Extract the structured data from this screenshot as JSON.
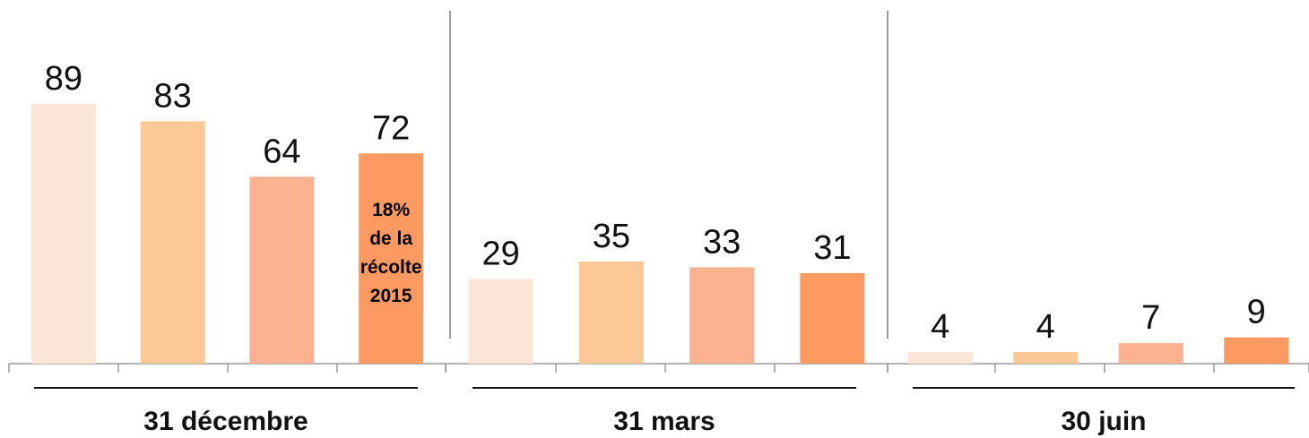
{
  "chart_data": {
    "type": "bar",
    "groups": [
      {
        "label": "31 décembre",
        "values": [
          89,
          83,
          64,
          72
        ],
        "annotation": [
          "18%",
          "de la",
          "récolte",
          "2015"
        ]
      },
      {
        "label": "31 mars",
        "values": [
          29,
          35,
          33,
          31
        ]
      },
      {
        "label": "30 juin",
        "values": [
          4,
          4,
          7,
          9
        ]
      }
    ],
    "series_colors": [
      "#fbe6d8",
      "#fcc996",
      "#fcb190",
      "#fd9a62"
    ],
    "annotation_color": "#000000",
    "ylim": [
      0,
      95
    ],
    "grid": false,
    "legend": "none"
  }
}
